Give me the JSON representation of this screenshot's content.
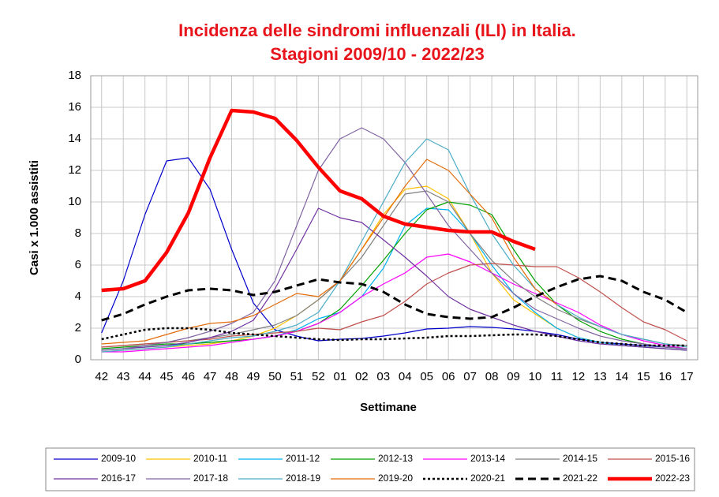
{
  "chart_data": {
    "type": "line",
    "title": "Incidenza delle sindromi influenzali (ILI) in Italia.",
    "subtitle": "Stagioni 2009/10 - 2022/23",
    "y_label": "Casi x 1.000 assistiti",
    "x_label": "Settimane",
    "categories": [
      "42",
      "43",
      "44",
      "45",
      "46",
      "47",
      "48",
      "49",
      "50",
      "51",
      "52",
      "01",
      "02",
      "03",
      "04",
      "05",
      "06",
      "07",
      "08",
      "09",
      "10",
      "11",
      "12",
      "13",
      "14",
      "15",
      "16",
      "17"
    ],
    "ylim": [
      0,
      18
    ],
    "yticks": [
      0,
      2,
      4,
      6,
      8,
      10,
      12,
      14,
      16,
      18
    ],
    "grid": true,
    "series": [
      {
        "name": "2009-10",
        "color": "#0000cc",
        "width": 1.2,
        "values": [
          1.7,
          5.0,
          9.2,
          12.6,
          12.8,
          10.8,
          7.0,
          3.6,
          1.9,
          1.5,
          1.2,
          1.3,
          1.35,
          1.5,
          1.7,
          1.95,
          2.0,
          2.1,
          2.05,
          1.95,
          1.8,
          1.6,
          1.3,
          1.1,
          1.0,
          0.9,
          0.8,
          0.7
        ]
      },
      {
        "name": "2010-11",
        "color": "#ffc000",
        "width": 1.2,
        "values": [
          0.5,
          0.6,
          0.7,
          0.8,
          0.9,
          1.0,
          1.2,
          1.5,
          2.0,
          2.8,
          3.8,
          5.0,
          7.0,
          9.2,
          10.8,
          11.0,
          10.2,
          8.0,
          5.5,
          3.8,
          2.9,
          2.0,
          1.4,
          1.1,
          0.9,
          0.8,
          0.7,
          0.6
        ]
      },
      {
        "name": "2011-12",
        "color": "#00b0f0",
        "width": 1.2,
        "values": [
          0.6,
          0.7,
          0.8,
          0.9,
          1.0,
          1.1,
          1.2,
          1.3,
          1.5,
          1.9,
          2.6,
          3.0,
          4.0,
          5.8,
          8.5,
          9.6,
          9.5,
          8.0,
          6.0,
          4.2,
          3.0,
          2.0,
          1.4,
          1.1,
          0.9,
          0.8,
          0.7,
          0.6
        ]
      },
      {
        "name": "2012-13",
        "color": "#00a000",
        "width": 1.2,
        "values": [
          0.7,
          0.8,
          0.9,
          1.0,
          1.0,
          1.1,
          1.2,
          1.3,
          1.5,
          1.8,
          2.3,
          3.2,
          4.7,
          6.3,
          8.0,
          9.5,
          10.0,
          9.8,
          9.2,
          7.0,
          5.0,
          3.5,
          2.5,
          1.8,
          1.3,
          1.0,
          0.8,
          0.7
        ]
      },
      {
        "name": "2013-14",
        "color": "#ff00ff",
        "width": 1.2,
        "values": [
          0.5,
          0.5,
          0.6,
          0.7,
          0.8,
          0.9,
          1.1,
          1.3,
          1.5,
          1.8,
          2.3,
          3.0,
          4.0,
          4.8,
          5.5,
          6.5,
          6.7,
          6.2,
          5.5,
          4.8,
          4.2,
          3.6,
          3.0,
          2.2,
          1.6,
          1.2,
          0.9,
          0.7
        ]
      },
      {
        "name": "2014-15",
        "color": "#808080",
        "width": 1.2,
        "values": [
          0.8,
          0.9,
          1.0,
          1.1,
          1.2,
          1.4,
          1.6,
          1.9,
          2.2,
          2.8,
          3.8,
          5.0,
          6.5,
          8.5,
          10.5,
          10.7,
          10.0,
          8.0,
          6.3,
          5.0,
          4.0,
          3.2,
          2.6,
          2.1,
          1.6,
          1.3,
          1.0,
          0.9
        ]
      },
      {
        "name": "2015-16",
        "color": "#c0504d",
        "width": 1.2,
        "values": [
          0.8,
          0.9,
          1.0,
          1.1,
          1.2,
          1.3,
          1.5,
          1.6,
          1.7,
          1.8,
          2.0,
          1.9,
          2.4,
          2.8,
          3.7,
          4.8,
          5.5,
          6.0,
          6.1,
          6.0,
          5.9,
          5.9,
          5.2,
          4.3,
          3.3,
          2.4,
          1.9,
          1.2
        ]
      },
      {
        "name": "2016-17",
        "color": "#7030a0",
        "width": 1.2,
        "values": [
          0.6,
          0.7,
          0.8,
          0.9,
          1.1,
          1.4,
          1.8,
          2.5,
          4.5,
          7.0,
          9.6,
          9.0,
          8.7,
          7.6,
          6.5,
          5.3,
          4.0,
          3.2,
          2.7,
          2.2,
          1.8,
          1.5,
          1.2,
          1.0,
          0.9,
          0.8,
          0.7,
          0.6
        ]
      },
      {
        "name": "2017-18",
        "color": "#8064a2",
        "width": 1.2,
        "values": [
          0.6,
          0.7,
          0.9,
          1.1,
          1.4,
          1.8,
          2.3,
          3.0,
          5.0,
          8.5,
          12.0,
          14.0,
          14.7,
          14.0,
          12.5,
          10.5,
          8.5,
          7.0,
          5.5,
          4.2,
          3.2,
          2.6,
          2.0,
          1.5,
          1.2,
          1.0,
          0.8,
          0.7
        ]
      },
      {
        "name": "2018-19",
        "color": "#4bacc6",
        "width": 1.2,
        "values": [
          0.5,
          0.6,
          0.7,
          0.8,
          1.0,
          1.2,
          1.4,
          1.5,
          1.8,
          2.2,
          3.0,
          5.0,
          7.5,
          10.0,
          12.5,
          14.0,
          13.3,
          10.5,
          8.0,
          6.0,
          4.5,
          3.5,
          2.7,
          2.1,
          1.6,
          1.3,
          1.0,
          0.8
        ]
      },
      {
        "name": "2019-20",
        "color": "#e46c0a",
        "width": 1.2,
        "values": [
          1.0,
          1.1,
          1.2,
          1.6,
          2.0,
          2.3,
          2.4,
          2.8,
          3.5,
          4.2,
          4.0,
          5.0,
          7.0,
          9.0,
          11.0,
          12.7,
          12.0,
          10.5,
          9.0,
          6.5,
          4.5,
          3.5,
          null,
          null,
          null,
          null,
          null,
          null
        ]
      },
      {
        "name": "2020-21",
        "color": "#000000",
        "width": 2.5,
        "dash": "dot",
        "values": [
          1.3,
          1.6,
          1.9,
          2.0,
          2.0,
          1.9,
          1.7,
          1.6,
          1.5,
          1.4,
          1.3,
          1.25,
          1.3,
          1.3,
          1.35,
          1.4,
          1.5,
          1.5,
          1.55,
          1.6,
          1.6,
          1.5,
          1.3,
          1.1,
          1.0,
          0.9,
          0.9,
          0.9
        ]
      },
      {
        "name": "2021-22",
        "color": "#000000",
        "width": 3,
        "dash": "dash",
        "values": [
          2.5,
          2.9,
          3.5,
          4.0,
          4.4,
          4.5,
          4.4,
          4.1,
          4.3,
          4.7,
          5.1,
          4.9,
          4.8,
          4.3,
          3.5,
          2.9,
          2.7,
          2.6,
          2.7,
          3.3,
          4.0,
          4.6,
          5.1,
          5.3,
          5.0,
          4.3,
          3.8,
          3.0
        ]
      },
      {
        "name": "2022-23",
        "color": "#ff0000",
        "width": 4.5,
        "values": [
          4.4,
          4.5,
          5.0,
          6.8,
          9.3,
          12.8,
          15.8,
          15.7,
          15.3,
          13.9,
          12.2,
          10.7,
          10.2,
          9.1,
          8.6,
          8.4,
          8.2,
          8.1,
          8.1,
          7.5,
          7.0,
          null,
          null,
          null,
          null,
          null,
          null,
          null
        ]
      }
    ]
  }
}
